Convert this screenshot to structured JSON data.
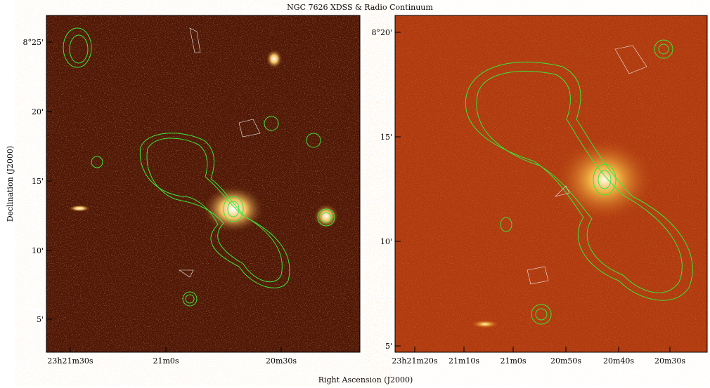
{
  "figure": {
    "title": "NGC 7626 XDSS & Radio Continuum",
    "x_label": "Right Ascension (J2000)",
    "y_label": "Declination (J2000)",
    "left_panel": {
      "dec_ticks": [
        "8°25'",
        "20'",
        "15'",
        "10'",
        "5'"
      ],
      "ra_ticks": [
        "23h21m30s",
        "21m0s",
        "20m30s"
      ]
    },
    "right_panel": {
      "dec_ticks": [
        "8°20'",
        "15'",
        "10'",
        "5'"
      ],
      "ra_ticks": [
        "23h21m20s",
        "21m10s",
        "21m0s",
        "20m50s",
        "20m40s",
        "20m30s"
      ]
    }
  }
}
